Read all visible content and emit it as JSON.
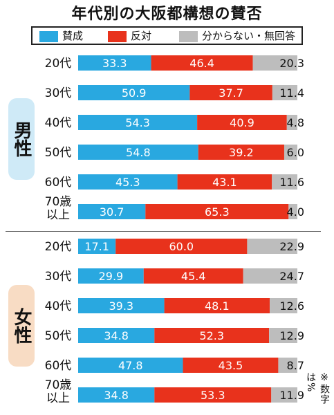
{
  "title": "年代別の大阪都構想の賛否",
  "legend": [
    {
      "label": "賛成",
      "color": "#29a8e0"
    },
    {
      "label": "反対",
      "color": "#e8321c"
    },
    {
      "label": "分からない・無回答",
      "color": "#bdbdbd"
    }
  ],
  "groups": [
    {
      "label": "男性",
      "color": "#cfeaf7"
    },
    {
      "label": "女性",
      "color": "#f8dcc4"
    }
  ],
  "note": "※数字は%",
  "chart_data": {
    "type": "bar",
    "stacked": true,
    "orientation": "horizontal",
    "title": "年代別の大阪都構想の賛否",
    "groups": [
      {
        "name": "男性",
        "categories": [
          "20代",
          "30代",
          "40代",
          "50代",
          "60代",
          "70歳以上"
        ],
        "series": [
          {
            "name": "賛成",
            "values": [
              33.3,
              50.9,
              54.3,
              54.8,
              45.3,
              30.7
            ]
          },
          {
            "name": "反対",
            "values": [
              46.4,
              37.7,
              40.9,
              39.2,
              43.1,
              65.3
            ]
          },
          {
            "name": "分からない・無回答",
            "values": [
              20.3,
              11.4,
              4.8,
              6.0,
              11.6,
              4.0
            ]
          }
        ]
      },
      {
        "name": "女性",
        "categories": [
          "20代",
          "30代",
          "40代",
          "50代",
          "60代",
          "70歳以上"
        ],
        "series": [
          {
            "name": "賛成",
            "values": [
              17.1,
              29.9,
              39.3,
              34.8,
              47.8,
              34.8
            ]
          },
          {
            "name": "反対",
            "values": [
              60.0,
              45.4,
              48.1,
              52.3,
              43.5,
              53.3
            ]
          },
          {
            "name": "分からない・無回答",
            "values": [
              22.9,
              24.7,
              12.6,
              12.9,
              8.7,
              11.9
            ]
          }
        ]
      }
    ],
    "value_labels": [
      [
        "33.3",
        "46.4",
        "20.3"
      ],
      [
        "50.9",
        "37.7",
        "11.4"
      ],
      [
        "54.3",
        "40.9",
        "4.8"
      ],
      [
        "54.8",
        "39.2",
        "6.0"
      ],
      [
        "45.3",
        "43.1",
        "11.6"
      ],
      [
        "30.7",
        "65.3",
        "4.0"
      ],
      [
        "17.1",
        "60.0",
        "22.9"
      ],
      [
        "29.9",
        "45.4",
        "24.7"
      ],
      [
        "39.3",
        "48.1",
        "12.6"
      ],
      [
        "34.8",
        "52.3",
        "12.9"
      ],
      [
        "47.8",
        "43.5",
        "8.7"
      ],
      [
        "34.8",
        "53.3",
        "11.9"
      ]
    ],
    "row_labels": [
      "20代",
      "30代",
      "40代",
      "50代",
      "60代",
      "70歳\n以上",
      "20代",
      "30代",
      "40代",
      "50代",
      "60代",
      "70歳\n以上"
    ]
  }
}
